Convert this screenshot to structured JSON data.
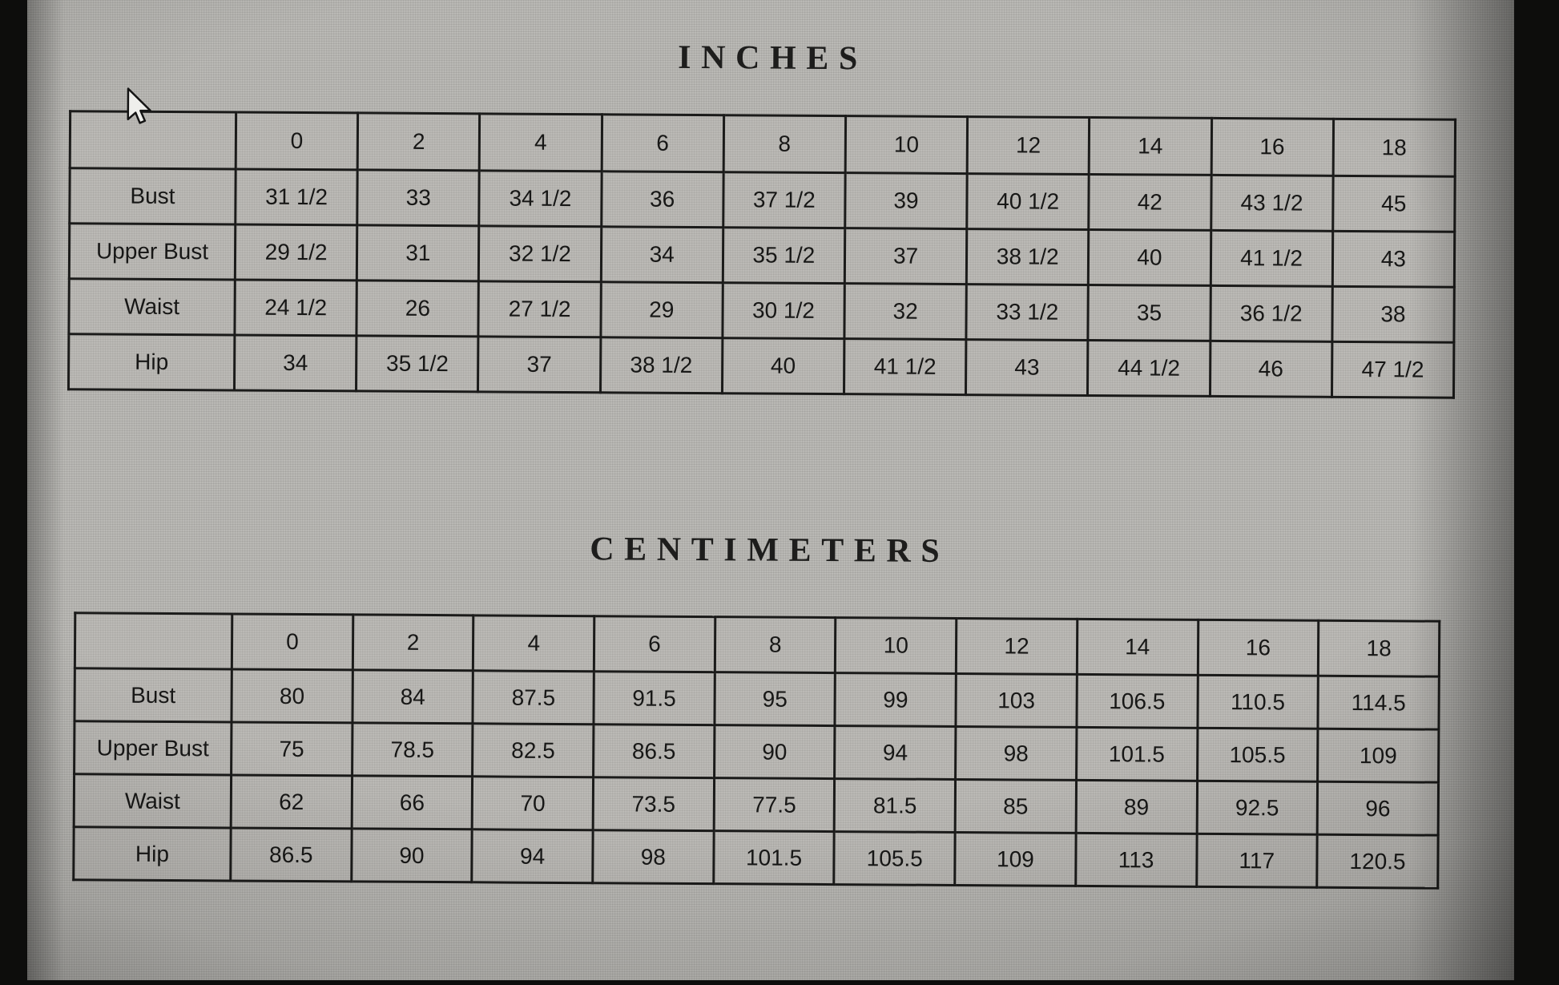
{
  "sections": [
    {
      "title": "INCHES",
      "table_name": "inches-size-table",
      "table": {
        "header": [
          "",
          "0",
          "2",
          "4",
          "6",
          "8",
          "10",
          "12",
          "14",
          "16",
          "18"
        ],
        "rows": [
          {
            "label": "Bust",
            "cells": [
              "31 1/2",
              "33",
              "34 1/2",
              "36",
              "37 1/2",
              "39",
              "40 1/2",
              "42",
              "43 1/2",
              "45"
            ]
          },
          {
            "label": "Upper Bust",
            "cells": [
              "29 1/2",
              "31",
              "32 1/2",
              "34",
              "35 1/2",
              "37",
              "38 1/2",
              "40",
              "41 1/2",
              "43"
            ]
          },
          {
            "label": "Waist",
            "cells": [
              "24 1/2",
              "26",
              "27 1/2",
              "29",
              "30 1/2",
              "32",
              "33 1/2",
              "35",
              "36 1/2",
              "38"
            ]
          },
          {
            "label": "Hip",
            "cells": [
              "34",
              "35 1/2",
              "37",
              "38 1/2",
              "40",
              "41 1/2",
              "43",
              "44 1/2",
              "46",
              "47 1/2"
            ]
          }
        ]
      }
    },
    {
      "title": "CENTIMETERS",
      "table_name": "centimeters-size-table",
      "table": {
        "header": [
          "",
          "0",
          "2",
          "4",
          "6",
          "8",
          "10",
          "12",
          "14",
          "16",
          "18"
        ],
        "rows": [
          {
            "label": "Bust",
            "cells": [
              "80",
              "84",
              "87.5",
              "91.5",
              "95",
              "99",
              "103",
              "106.5",
              "110.5",
              "114.5"
            ]
          },
          {
            "label": "Upper Bust",
            "cells": [
              "75",
              "78.5",
              "82.5",
              "86.5",
              "90",
              "94",
              "98",
              "101.5",
              "105.5",
              "109"
            ]
          },
          {
            "label": "Waist",
            "cells": [
              "62",
              "66",
              "70",
              "73.5",
              "77.5",
              "81.5",
              "85",
              "89",
              "92.5",
              "96"
            ]
          },
          {
            "label": "Hip",
            "cells": [
              "86.5",
              "90",
              "94",
              "98",
              "101.5",
              "105.5",
              "109",
              "113",
              "117",
              "120.5"
            ]
          }
        ]
      }
    }
  ],
  "cursor": {
    "icon": "arrow-pointer"
  },
  "colors": {
    "screen_background": "#b6b5b1",
    "table_border": "#1b1b1a",
    "text": "#171716",
    "photo_edge": "#0d0d0c"
  }
}
